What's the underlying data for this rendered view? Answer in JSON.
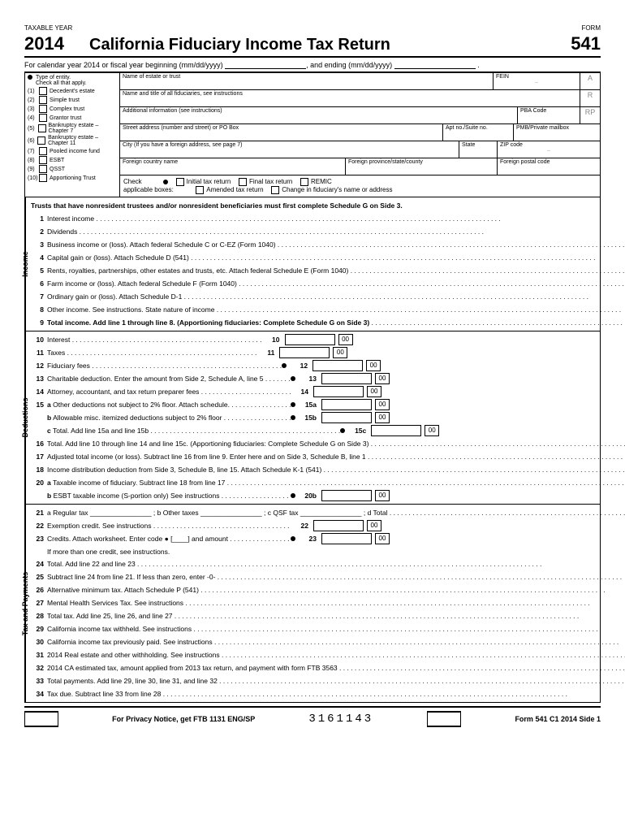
{
  "hdr": {
    "taxable": "TAXABLE YEAR",
    "form": "FORM",
    "year": "2014",
    "title": "California Fiduciary Income Tax Return",
    "num": "541",
    "cal": "For calendar year 2014 or fiscal year beginning (mm/dd/yyyy)",
    "and": ", and ending (mm/dd/yyyy)"
  },
  "entity": {
    "type": "Type of entity.",
    "check": "Check all that apply.",
    "items": [
      "Decedent's estate",
      "Simple trust",
      "Complex trust",
      "Grantor trust",
      "Bankruptcy estate – Chapter 7",
      "Bankruptcy estate – Chapter 11",
      "Pooled income fund",
      "ESBT",
      "QSST",
      "Apportioning Trust"
    ]
  },
  "info": {
    "name": "Name of estate or trust",
    "fein": "FEIN",
    "fid": "Name and title of all fiduciaries, see instructions",
    "addl": "Additional information (see instructions)",
    "pba": "PBA Code",
    "street": "Street address (number and street) or PO Box",
    "apt": "Apt no./Suite no.",
    "pmb": "PMB/Private mailbox",
    "city": "City (If you have a foreign address, see page 7)",
    "state": "State",
    "zip": "ZIP code",
    "fcountry": "Foreign country name",
    "fprov": "Foreign province/state/county",
    "fpost": "Foreign postal code"
  },
  "checkrow": {
    "a": "Check",
    "b": "applicable boxes:",
    "opts": [
      "Initial tax return",
      "Final tax return",
      "REMIC",
      "Amended tax return",
      "Change in fiduciary's name or address"
    ]
  },
  "notice": "Trusts that have nonresident trustees and/or nonresident beneficiaries must first complete Schedule G on Side 3.",
  "income": [
    {
      "n": "1",
      "t": "Interest income",
      "r": "1"
    },
    {
      "n": "2",
      "t": "Dividends",
      "r": "2"
    },
    {
      "n": "3",
      "t": "Business income or (loss). Attach federal Schedule C or C-EZ (Form 1040)",
      "r": "3",
      "d": 1
    },
    {
      "n": "4",
      "t": "Capital gain or (loss). Attach Schedule D (541)",
      "r": "4",
      "d": 1
    },
    {
      "n": "5",
      "t": "Rents, royalties, partnerships, other estates and trusts, etc. Attach federal Schedule E (Form 1040)",
      "r": "5",
      "d": 1
    },
    {
      "n": "6",
      "t": "Farm income or (loss). Attach federal Schedule F (Form 1040)",
      "r": "6",
      "d": 1
    },
    {
      "n": "7",
      "t": "Ordinary gain or (loss). Attach Schedule D-1",
      "r": "7",
      "d": 1
    },
    {
      "n": "8",
      "t": "Other income. See instructions. State nature of income",
      "r": "8",
      "d": 1
    },
    {
      "n": "9",
      "t": "Total income. Add line 1 through line 8. (Apportioning fiduciaries: Complete Schedule G on Side 3)",
      "r": "9",
      "d": 1,
      "b": 1
    }
  ],
  "ded": [
    {
      "n": "10",
      "t": "Interest",
      "m": "10"
    },
    {
      "n": "11",
      "t": "Taxes",
      "m": "11"
    },
    {
      "n": "12",
      "t": "Fiduciary fees",
      "m": "12",
      "d": 1
    },
    {
      "n": "13",
      "t": "Charitable deduction. Enter the amount from Side 2, Schedule A, line 5",
      "m": "13",
      "d": 1
    },
    {
      "n": "14",
      "t": "Attorney, accountant, and tax return preparer fees",
      "m": "14"
    },
    {
      "n": "15",
      "sub": "a",
      "t": "Other deductions not subject to 2% floor. Attach schedule.",
      "m": "15a",
      "d": 1
    },
    {
      "n": "",
      "sub": "b",
      "t": "Allowable misc. itemized deductions subject to 2% floor",
      "m": "15b",
      "d": 1
    },
    {
      "n": "",
      "sub": "c",
      "t": "Total. Add line 15a and line 15b",
      "m": "15c",
      "d": 1,
      "wide": 1
    },
    {
      "n": "16",
      "t": "Total. Add line 10 through line 14 and line 15c. (Apportioning fiduciaries: Complete Schedule G on Side 3)",
      "r": "16",
      "d": 1
    },
    {
      "n": "17",
      "t": "Adjusted total income (or loss). Subtract line 16 from line 9. Enter here and on Side 3, Schedule B, line 1",
      "r": "17",
      "d": 1
    },
    {
      "n": "18",
      "t": "Income distribution deduction from Side 3, Schedule B, line 15. Attach Schedule K-1 (541)",
      "r": "18",
      "d": 1
    },
    {
      "n": "20",
      "sub": "a",
      "t": "Taxable income of fiduciary. Subtract line 18 from line 17",
      "r": "20a",
      "d": 1,
      "circ": 1
    },
    {
      "n": "",
      "sub": "b",
      "t": "ESBT taxable income (S-portion only) See instructions",
      "m": "20b",
      "d": 1
    }
  ],
  "tax": [
    {
      "n": "21",
      "t": "a  Regular tax ________________ ;   b  Other taxes ________________ ;   c  QSF tax ________________ ;   d  Total",
      "r": "21",
      "d": 1
    },
    {
      "n": "22",
      "t": "Exemption credit. See instructions",
      "m": "22"
    },
    {
      "n": "23",
      "t": "Credits. Attach worksheet. Enter code ● [____] and amount",
      "m": "23",
      "d": 1
    },
    {
      "n": "",
      "t": "If more than one credit, see instructions."
    },
    {
      "n": "24",
      "t": "Total. Add line 22 and line 23",
      "r": "24",
      "d": 1
    },
    {
      "n": "25",
      "t": "Subtract line 24 from line 21. If less than zero, enter -0-",
      "r": "25"
    },
    {
      "n": "26",
      "t": "Alternative minimum tax. Attach Schedule P (541)",
      "r": "26",
      "d": 1
    },
    {
      "n": "27",
      "t": "Mental Health Services Tax. See instructions",
      "r": "27",
      "d": 1
    },
    {
      "n": "28",
      "t": "Total tax. Add line 25, line 26, and line 27",
      "r": "28",
      "d": 1
    },
    {
      "n": "29",
      "t": "California income tax withheld. See instructions",
      "r": "29",
      "d": 1
    },
    {
      "n": "30",
      "t": "California income tax previously paid. See instructions",
      "r": "30",
      "d": 1
    },
    {
      "n": "31",
      "t": "2014 Real estate and other withholding. See instructions",
      "r": "31",
      "d": 1
    },
    {
      "n": "32",
      "t": "2014 CA estimated tax, amount applied from 2013 tax return, and payment with form FTB 3563",
      "r": "32",
      "d": 1
    },
    {
      "n": "33",
      "t": "Total payments. Add line 29, line 30, line 31, and line 32",
      "r": "33"
    },
    {
      "n": "34",
      "t": "Tax due. Subtract line 33 from line 28",
      "r": "34",
      "d": 1
    }
  ],
  "foot": {
    "priv": "For Privacy Notice, get FTB 1131 ENG/SP",
    "code": "3161143",
    "side": "Form 541  C1  2014  Side 1"
  },
  "cents": "00",
  "secLabels": {
    "inc": "Income",
    "ded": "Deductions",
    "tax": "Tax and Payments"
  }
}
